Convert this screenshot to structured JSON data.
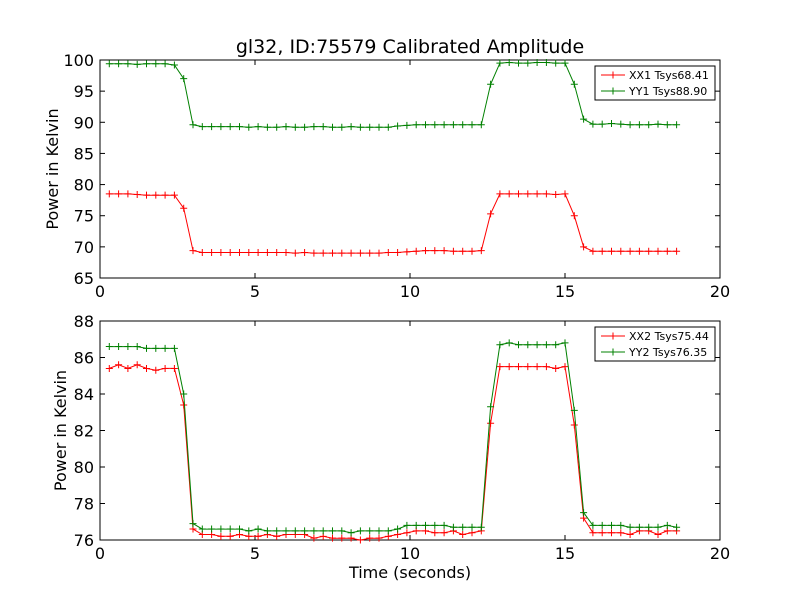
{
  "figure": {
    "title": "gl32, ID:75579 Calibrated Amplitude"
  },
  "chart_data": [
    {
      "type": "line",
      "title": "gl32, ID:75579 Calibrated Amplitude",
      "xlabel": "",
      "ylabel": "Power in Kelvin",
      "xlim": [
        0,
        20
      ],
      "ylim": [
        65,
        100
      ],
      "xticks": [
        0,
        5,
        10,
        15,
        20
      ],
      "yticks": [
        65,
        70,
        75,
        80,
        85,
        90,
        95,
        100
      ],
      "legend_position": "top-right",
      "x": [
        0.3,
        0.6,
        0.9,
        1.2,
        1.5,
        1.8,
        2.1,
        2.4,
        2.7,
        3.0,
        3.3,
        3.6,
        3.9,
        4.2,
        4.5,
        4.8,
        5.1,
        5.4,
        5.7,
        6.0,
        6.3,
        6.6,
        6.9,
        7.2,
        7.5,
        7.8,
        8.1,
        8.4,
        8.7,
        9.0,
        9.3,
        9.6,
        9.9,
        10.2,
        10.5,
        10.8,
        11.1,
        11.4,
        11.7,
        12.0,
        12.3,
        12.6,
        12.9,
        13.2,
        13.5,
        13.8,
        14.1,
        14.4,
        14.7,
        15.0,
        15.3,
        15.6,
        15.9,
        16.2,
        16.5,
        16.8,
        17.1,
        17.4,
        17.7,
        18.0,
        18.3,
        18.6
      ],
      "series": [
        {
          "name": "XX1 Tsys68.41",
          "color": "#ff0000",
          "values": [
            78.5,
            78.5,
            78.5,
            78.4,
            78.3,
            78.3,
            78.3,
            78.3,
            76.2,
            69.4,
            69.1,
            69.1,
            69.1,
            69.1,
            69.1,
            69.1,
            69.1,
            69.1,
            69.1,
            69.1,
            69.0,
            69.1,
            69.0,
            69.0,
            69.0,
            69.0,
            69.0,
            69.0,
            69.0,
            69.0,
            69.1,
            69.1,
            69.2,
            69.3,
            69.4,
            69.4,
            69.4,
            69.3,
            69.3,
            69.3,
            69.4,
            75.3,
            78.5,
            78.5,
            78.5,
            78.5,
            78.5,
            78.5,
            78.4,
            78.5,
            75.0,
            70.0,
            69.3,
            69.3,
            69.3,
            69.3,
            69.3,
            69.3,
            69.3,
            69.3,
            69.3,
            69.3
          ]
        },
        {
          "name": "YY1 Tsys88.90",
          "color": "#008000",
          "values": [
            99.4,
            99.4,
            99.4,
            99.3,
            99.4,
            99.4,
            99.4,
            99.2,
            97.0,
            89.6,
            89.3,
            89.3,
            89.3,
            89.3,
            89.3,
            89.2,
            89.3,
            89.2,
            89.2,
            89.3,
            89.2,
            89.2,
            89.3,
            89.3,
            89.2,
            89.2,
            89.3,
            89.2,
            89.2,
            89.2,
            89.2,
            89.4,
            89.5,
            89.6,
            89.6,
            89.6,
            89.6,
            89.6,
            89.6,
            89.6,
            89.6,
            96.1,
            99.5,
            99.6,
            99.5,
            99.5,
            99.6,
            99.6,
            99.5,
            99.5,
            96.1,
            90.5,
            89.7,
            89.7,
            89.8,
            89.7,
            89.6,
            89.6,
            89.6,
            89.7,
            89.6,
            89.6
          ]
        }
      ]
    },
    {
      "type": "line",
      "title": "",
      "xlabel": "Time (seconds)",
      "ylabel": "Power in Kelvin",
      "xlim": [
        0,
        20
      ],
      "ylim": [
        76,
        88
      ],
      "xticks": [
        0,
        5,
        10,
        15,
        20
      ],
      "yticks": [
        76,
        78,
        80,
        82,
        84,
        86,
        88
      ],
      "legend_position": "top-right",
      "x": [
        0.3,
        0.6,
        0.9,
        1.2,
        1.5,
        1.8,
        2.1,
        2.4,
        2.7,
        3.0,
        3.3,
        3.6,
        3.9,
        4.2,
        4.5,
        4.8,
        5.1,
        5.4,
        5.7,
        6.0,
        6.3,
        6.6,
        6.9,
        7.2,
        7.5,
        7.8,
        8.1,
        8.4,
        8.7,
        9.0,
        9.3,
        9.6,
        9.9,
        10.2,
        10.5,
        10.8,
        11.1,
        11.4,
        11.7,
        12.0,
        12.3,
        12.6,
        12.9,
        13.2,
        13.5,
        13.8,
        14.1,
        14.4,
        14.7,
        15.0,
        15.3,
        15.6,
        15.9,
        16.2,
        16.5,
        16.8,
        17.1,
        17.4,
        17.7,
        18.0,
        18.3,
        18.6
      ],
      "series": [
        {
          "name": "XX2 Tsys75.44",
          "color": "#ff0000",
          "values": [
            85.4,
            85.6,
            85.4,
            85.6,
            85.4,
            85.3,
            85.4,
            85.4,
            83.4,
            76.6,
            76.3,
            76.3,
            76.2,
            76.2,
            76.3,
            76.2,
            76.2,
            76.3,
            76.2,
            76.3,
            76.3,
            76.3,
            76.1,
            76.2,
            76.1,
            76.1,
            76.1,
            76.0,
            76.1,
            76.1,
            76.2,
            76.3,
            76.4,
            76.5,
            76.5,
            76.4,
            76.4,
            76.5,
            76.3,
            76.4,
            76.5,
            82.4,
            85.5,
            85.5,
            85.5,
            85.5,
            85.5,
            85.5,
            85.4,
            85.5,
            82.3,
            77.2,
            76.4,
            76.4,
            76.4,
            76.4,
            76.3,
            76.5,
            76.5,
            76.3,
            76.5,
            76.5
          ]
        },
        {
          "name": "YY2 Tsys76.35",
          "color": "#008000",
          "values": [
            86.6,
            86.6,
            86.6,
            86.6,
            86.5,
            86.5,
            86.5,
            86.5,
            84.0,
            76.9,
            76.6,
            76.6,
            76.6,
            76.6,
            76.6,
            76.5,
            76.6,
            76.5,
            76.5,
            76.5,
            76.5,
            76.5,
            76.5,
            76.5,
            76.5,
            76.5,
            76.4,
            76.5,
            76.5,
            76.5,
            76.5,
            76.6,
            76.8,
            76.8,
            76.8,
            76.8,
            76.8,
            76.7,
            76.7,
            76.7,
            76.7,
            83.3,
            86.7,
            86.8,
            86.7,
            86.7,
            86.7,
            86.7,
            86.7,
            86.8,
            83.1,
            77.5,
            76.8,
            76.8,
            76.8,
            76.8,
            76.7,
            76.7,
            76.7,
            76.7,
            76.8,
            76.7
          ]
        }
      ]
    }
  ]
}
